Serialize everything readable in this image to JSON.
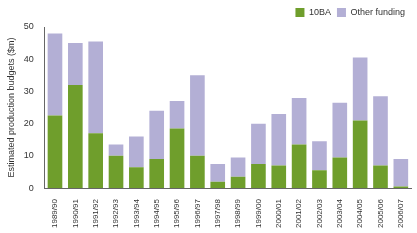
{
  "chart_data": {
    "type": "bar",
    "y_label": "Estimated production budgets ($m)",
    "categories": [
      "1989/90",
      "1990/91",
      "1991/92",
      "1992/93",
      "1993/94",
      "1994/95",
      "1995/96",
      "1996/97",
      "1997/98",
      "1998/99",
      "1999/00",
      "2000/01",
      "2001/02",
      "2002/03",
      "2003/04",
      "2004/05",
      "2005/06",
      "2006/07"
    ],
    "series": [
      {
        "name": "10BA",
        "color": "#6f9e2c",
        "values": [
          22.5,
          32,
          17,
          10,
          6.5,
          9,
          18.5,
          10,
          2,
          3.5,
          7.5,
          7,
          13.5,
          5.5,
          9.5,
          21,
          7,
          0.5
        ]
      },
      {
        "name": "Other funding",
        "color": "#b3afd5",
        "values": [
          25.5,
          13,
          28.5,
          3.5,
          9.5,
          15,
          8.5,
          25,
          5.5,
          6,
          12.5,
          16,
          14.5,
          9,
          17,
          19.5,
          21.5,
          8.5
        ]
      }
    ],
    "ylim": [
      0,
      50
    ],
    "yticks": [
      0,
      10,
      20,
      30,
      40,
      50
    ],
    "stacked": true,
    "grid": false,
    "legend": "top-right"
  }
}
